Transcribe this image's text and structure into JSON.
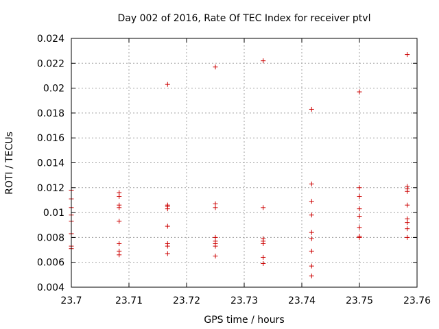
{
  "chart_data": {
    "type": "scatter",
    "title": "Day 002 of 2016, Rate Of TEC Index for receiver ptvl",
    "xlabel": "GPS time / hours",
    "ylabel": "ROTI / TECUs",
    "xlim": [
      23.7,
      23.76
    ],
    "ylim": [
      0.004,
      0.024
    ],
    "xticks": [
      23.7,
      23.71,
      23.72,
      23.73,
      23.74,
      23.75,
      23.76
    ],
    "xtick_labels": [
      "23.7",
      "23.71",
      "23.72",
      "23.73",
      "23.74",
      "23.75",
      "23.76"
    ],
    "yticks": [
      0.004,
      0.006,
      0.008,
      0.01,
      0.012,
      0.014,
      0.016,
      0.018,
      0.02,
      0.022,
      0.024
    ],
    "ytick_labels": [
      "0.004",
      "0.006",
      "0.008",
      "0.01",
      "0.012",
      "0.014",
      "0.016",
      "0.018",
      "0.02",
      "0.022",
      "0.024"
    ],
    "grid": true,
    "marker": "+",
    "series": [
      {
        "name": "ROTI",
        "color": "#cc0000",
        "points": [
          [
            23.7,
            0.0118
          ],
          [
            23.7,
            0.0111
          ],
          [
            23.7,
            0.0104
          ],
          [
            23.7,
            0.0098
          ],
          [
            23.7,
            0.0093
          ],
          [
            23.7,
            0.0083
          ],
          [
            23.7,
            0.0073
          ],
          [
            23.7,
            0.0071
          ],
          [
            23.7083,
            0.0116
          ],
          [
            23.7083,
            0.0113
          ],
          [
            23.7083,
            0.0106
          ],
          [
            23.7083,
            0.0104
          ],
          [
            23.7083,
            0.0093
          ],
          [
            23.7083,
            0.0075
          ],
          [
            23.7083,
            0.0069
          ],
          [
            23.7083,
            0.0066
          ],
          [
            23.7167,
            0.0203
          ],
          [
            23.7167,
            0.0106
          ],
          [
            23.7167,
            0.0105
          ],
          [
            23.7167,
            0.0103
          ],
          [
            23.7167,
            0.0089
          ],
          [
            23.7167,
            0.0075
          ],
          [
            23.7167,
            0.0073
          ],
          [
            23.7167,
            0.0067
          ],
          [
            23.725,
            0.0217
          ],
          [
            23.725,
            0.0107
          ],
          [
            23.725,
            0.0104
          ],
          [
            23.725,
            0.008
          ],
          [
            23.725,
            0.0077
          ],
          [
            23.725,
            0.0075
          ],
          [
            23.725,
            0.0073
          ],
          [
            23.725,
            0.0065
          ],
          [
            23.7333,
            0.0222
          ],
          [
            23.7333,
            0.0104
          ],
          [
            23.7333,
            0.0079
          ],
          [
            23.7333,
            0.0077
          ],
          [
            23.7333,
            0.0075
          ],
          [
            23.7333,
            0.0064
          ],
          [
            23.7333,
            0.0059
          ],
          [
            23.7417,
            0.0183
          ],
          [
            23.7417,
            0.0123
          ],
          [
            23.7417,
            0.0109
          ],
          [
            23.7417,
            0.0098
          ],
          [
            23.7417,
            0.0084
          ],
          [
            23.7417,
            0.0079
          ],
          [
            23.7417,
            0.0069
          ],
          [
            23.7417,
            0.0057
          ],
          [
            23.7417,
            0.0049
          ],
          [
            23.75,
            0.0197
          ],
          [
            23.75,
            0.012
          ],
          [
            23.75,
            0.0113
          ],
          [
            23.75,
            0.0103
          ],
          [
            23.75,
            0.0097
          ],
          [
            23.75,
            0.0088
          ],
          [
            23.75,
            0.0081
          ],
          [
            23.75,
            0.008
          ],
          [
            23.7583,
            0.0227
          ],
          [
            23.7583,
            0.0121
          ],
          [
            23.7583,
            0.0119
          ],
          [
            23.7583,
            0.0117
          ],
          [
            23.7583,
            0.0106
          ],
          [
            23.7583,
            0.0095
          ],
          [
            23.7583,
            0.0092
          ],
          [
            23.7583,
            0.0087
          ],
          [
            23.7583,
            0.008
          ]
        ]
      }
    ]
  }
}
